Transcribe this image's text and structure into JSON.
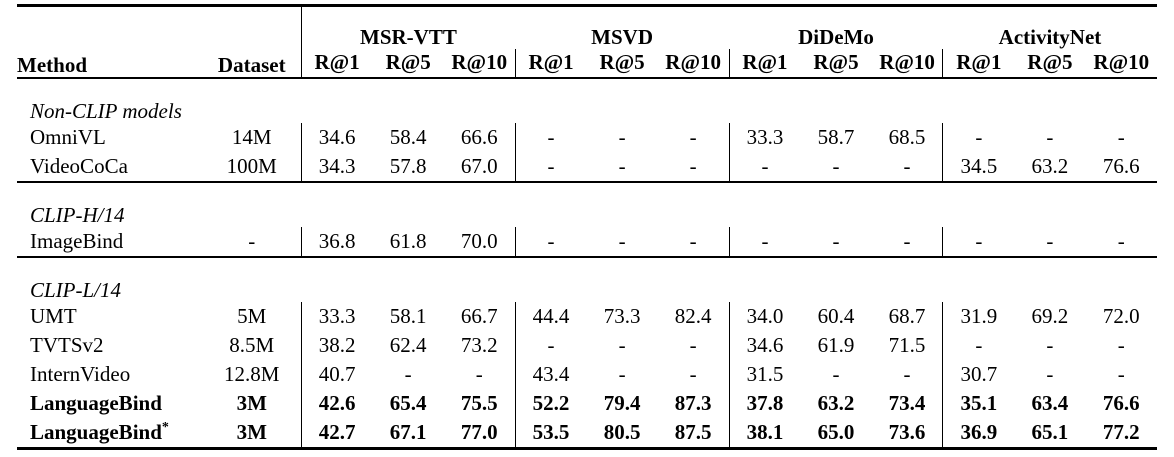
{
  "table": {
    "method_header": "Method",
    "dataset_header": "Dataset",
    "benchmarks": [
      {
        "name": "MSR-VTT",
        "metrics": [
          "R@1",
          "R@5",
          "R@10"
        ]
      },
      {
        "name": "MSVD",
        "metrics": [
          "R@1",
          "R@5",
          "R@10"
        ]
      },
      {
        "name": "DiDeMo",
        "metrics": [
          "R@1",
          "R@5",
          "R@10"
        ]
      },
      {
        "name": "ActivityNet",
        "metrics": [
          "R@1",
          "R@5",
          "R@10"
        ]
      }
    ],
    "sections": [
      {
        "title": "Non-CLIP models",
        "rows": [
          {
            "method": "OmniVL",
            "dataset": "14M",
            "bold": false,
            "star": "",
            "values": [
              "34.6",
              "58.4",
              "66.6",
              "-",
              "-",
              "-",
              "33.3",
              "58.7",
              "68.5",
              "-",
              "-",
              "-"
            ]
          },
          {
            "method": "VideoCoCa",
            "dataset": "100M",
            "bold": false,
            "star": "",
            "values": [
              "34.3",
              "57.8",
              "67.0",
              "-",
              "-",
              "-",
              "-",
              "-",
              "-",
              "34.5",
              "63.2",
              "76.6"
            ]
          }
        ]
      },
      {
        "title": "CLIP-H/14",
        "rows": [
          {
            "method": "ImageBind",
            "dataset": "-",
            "bold": false,
            "star": "",
            "values": [
              "36.8",
              "61.8",
              "70.0",
              "-",
              "-",
              "-",
              "-",
              "-",
              "-",
              "-",
              "-",
              "-"
            ]
          }
        ]
      },
      {
        "title": "CLIP-L/14",
        "rows": [
          {
            "method": "UMT",
            "dataset": "5M",
            "bold": false,
            "star": "",
            "values": [
              "33.3",
              "58.1",
              "66.7",
              "44.4",
              "73.3",
              "82.4",
              "34.0",
              "60.4",
              "68.7",
              "31.9",
              "69.2",
              "72.0"
            ]
          },
          {
            "method": "TVTSv2",
            "dataset": "8.5M",
            "bold": false,
            "star": "",
            "values": [
              "38.2",
              "62.4",
              "73.2",
              "-",
              "-",
              "-",
              "34.6",
              "61.9",
              "71.5",
              "-",
              "-",
              "-"
            ]
          },
          {
            "method": "InternVideo",
            "dataset": "12.8M",
            "bold": false,
            "star": "",
            "values": [
              "40.7",
              "-",
              "-",
              "43.4",
              "-",
              "-",
              "31.5",
              "-",
              "-",
              "30.7",
              "-",
              "-"
            ]
          },
          {
            "method": "LanguageBind",
            "dataset": "3M",
            "bold": true,
            "star": "",
            "values": [
              "42.6",
              "65.4",
              "75.5",
              "52.2",
              "79.4",
              "87.3",
              "37.8",
              "63.2",
              "73.4",
              "35.1",
              "63.4",
              "76.6"
            ]
          },
          {
            "method": "LanguageBind",
            "dataset": "3M",
            "bold": true,
            "star": "*",
            "values": [
              "42.7",
              "67.1",
              "77.0",
              "53.5",
              "80.5",
              "87.5",
              "38.1",
              "65.0",
              "73.6",
              "36.9",
              "65.1",
              "77.2"
            ]
          }
        ]
      }
    ],
    "colors": {
      "text": "#000000",
      "background": "#ffffff",
      "rule": "#000000"
    }
  }
}
